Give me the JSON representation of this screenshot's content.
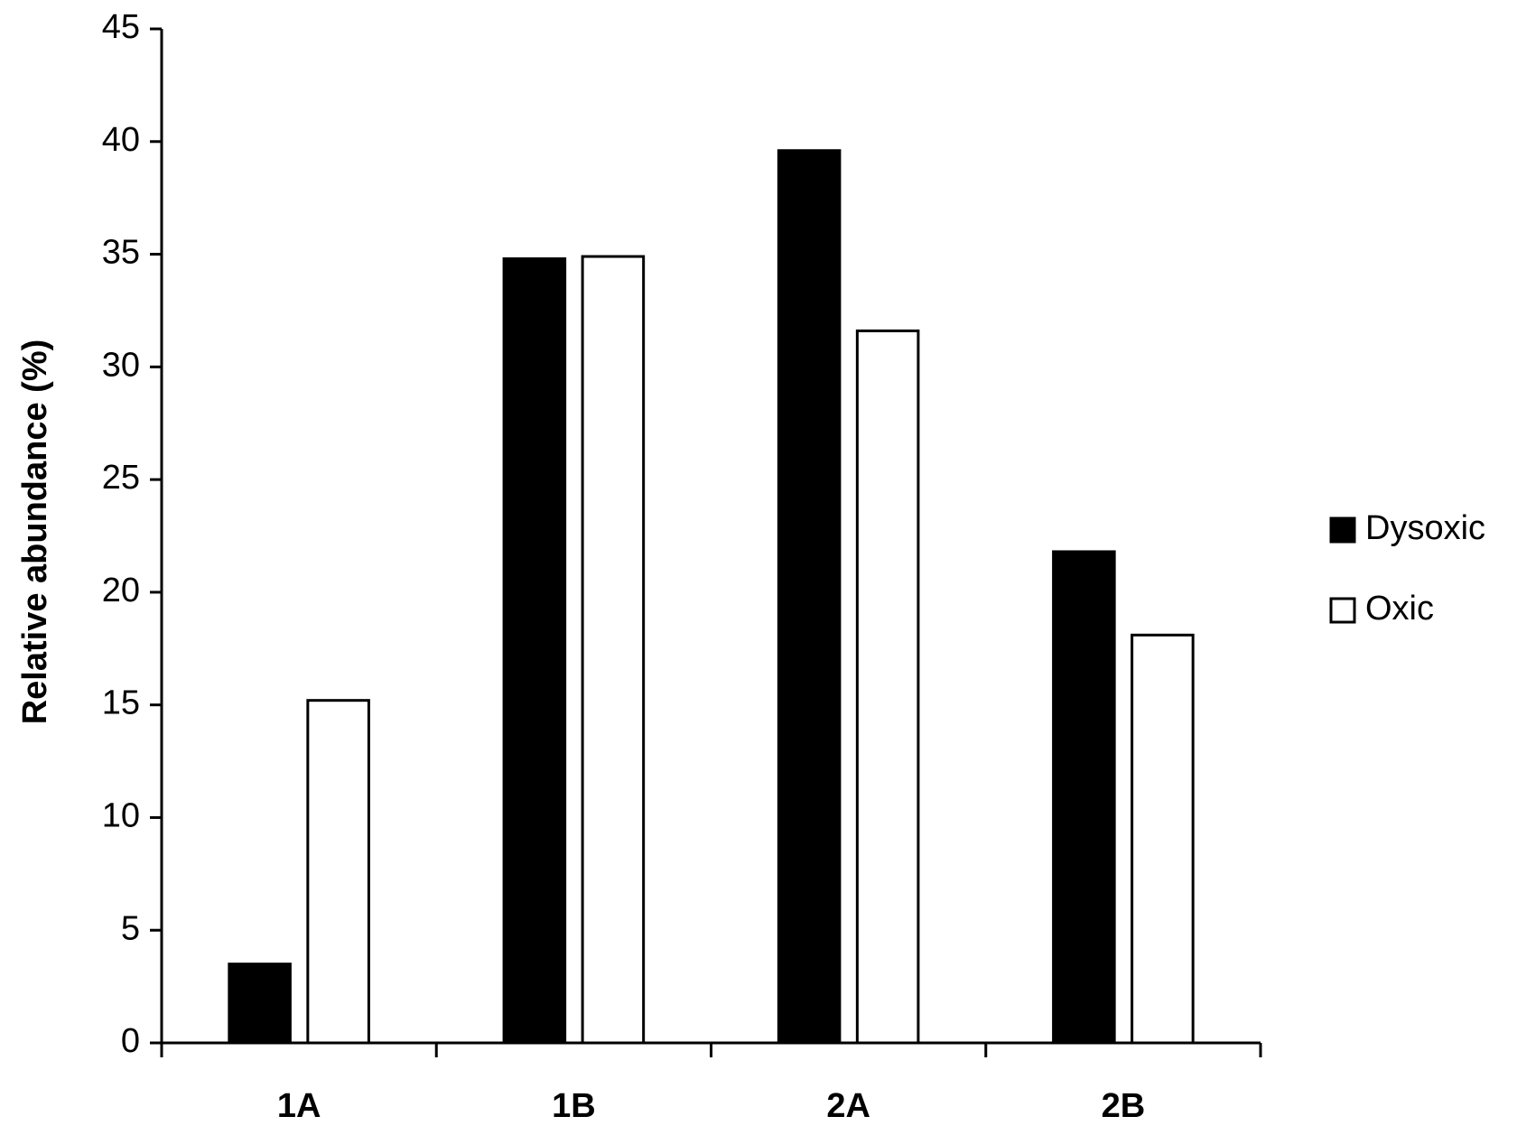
{
  "chart_data": {
    "type": "bar",
    "y_label": "Relative abundance (%)",
    "categories": [
      "1A",
      "1B",
      "2A",
      "2B"
    ],
    "series": [
      {
        "name": "Dysoxic",
        "color": "#000000",
        "values": [
          3.5,
          34.8,
          39.6,
          21.8
        ]
      },
      {
        "name": "Oxic",
        "color": "#ffffff",
        "values": [
          15.2,
          34.9,
          31.6,
          18.1
        ]
      }
    ],
    "edgecolor": "#000000",
    "ylim": [
      0,
      45
    ],
    "yticks": [
      0,
      5,
      10,
      15,
      20,
      25,
      30,
      35,
      40,
      45
    ],
    "grid": false,
    "legend": "right"
  }
}
